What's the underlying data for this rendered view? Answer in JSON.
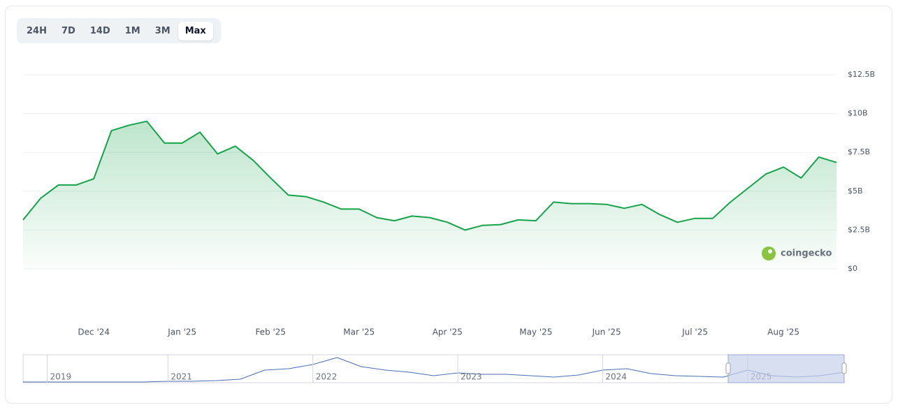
{
  "range_buttons": [
    {
      "label": "24H",
      "selected": false
    },
    {
      "label": "7D",
      "selected": false
    },
    {
      "label": "14D",
      "selected": false
    },
    {
      "label": "1M",
      "selected": false
    },
    {
      "label": "3M",
      "selected": false
    },
    {
      "label": "Max",
      "selected": true
    }
  ],
  "watermark": "coingecko",
  "chart_data": [
    {
      "type": "line",
      "color": "#16a34a",
      "area": true,
      "grid": true,
      "categories": [
        null,
        null,
        null,
        null,
        "Dec '24",
        null,
        null,
        null,
        null,
        "Jan '25",
        null,
        null,
        null,
        null,
        "Feb '25",
        null,
        null,
        null,
        null,
        "Mar '25",
        null,
        null,
        null,
        null,
        "Apr '25",
        null,
        null,
        null,
        null,
        "May '25",
        null,
        null,
        null,
        "Jun '25",
        null,
        null,
        null,
        null,
        "Jul '25",
        null,
        null,
        null,
        null,
        "Aug '25",
        null,
        null,
        null
      ],
      "values": [
        3.15,
        4.55,
        5.4,
        5.4,
        5.8,
        8.9,
        9.25,
        9.5,
        8.1,
        8.1,
        8.8,
        7.4,
        7.9,
        7.0,
        5.85,
        4.75,
        4.65,
        4.3,
        3.85,
        3.85,
        3.3,
        3.1,
        3.4,
        3.3,
        3.0,
        2.5,
        2.8,
        2.85,
        3.15,
        3.1,
        4.3,
        4.2,
        4.2,
        4.15,
        3.9,
        4.15,
        3.5,
        3.0,
        3.25,
        3.25,
        4.3,
        5.2,
        6.1,
        6.55,
        5.85,
        7.2,
        6.85
      ],
      "ylim": [
        0,
        12.5
      ],
      "yticks": [
        {
          "value": 0,
          "label": "$0"
        },
        {
          "value": 2.5,
          "label": "$2.5B"
        },
        {
          "value": 5,
          "label": "$5B"
        },
        {
          "value": 7.5,
          "label": "$7.5B"
        },
        {
          "value": 10,
          "label": "$10B"
        },
        {
          "value": 12.5,
          "label": "$12.5B"
        }
      ]
    },
    {
      "type": "line",
      "color": "#4a6fb5",
      "area": false,
      "grid": false,
      "categories": [
        null,
        "2019",
        null,
        null,
        null,
        null,
        "2021",
        null,
        null,
        null,
        null,
        null,
        "2022",
        null,
        null,
        null,
        null,
        null,
        "2023",
        null,
        null,
        null,
        null,
        null,
        "2024",
        null,
        null,
        null,
        null,
        null,
        "2025",
        null,
        null,
        null,
        null
      ],
      "values": [
        0.5,
        0.5,
        0.5,
        0.5,
        0.5,
        0.5,
        1.0,
        1.0,
        1.5,
        2.5,
        9,
        10,
        13,
        18,
        11.5,
        9,
        7.5,
        5,
        7,
        6,
        6,
        5,
        4,
        5.5,
        9,
        10,
        6.5,
        5,
        4.5,
        4,
        9,
        5,
        4,
        5,
        7.5
      ],
      "ylim": [
        0,
        20
      ]
    }
  ]
}
